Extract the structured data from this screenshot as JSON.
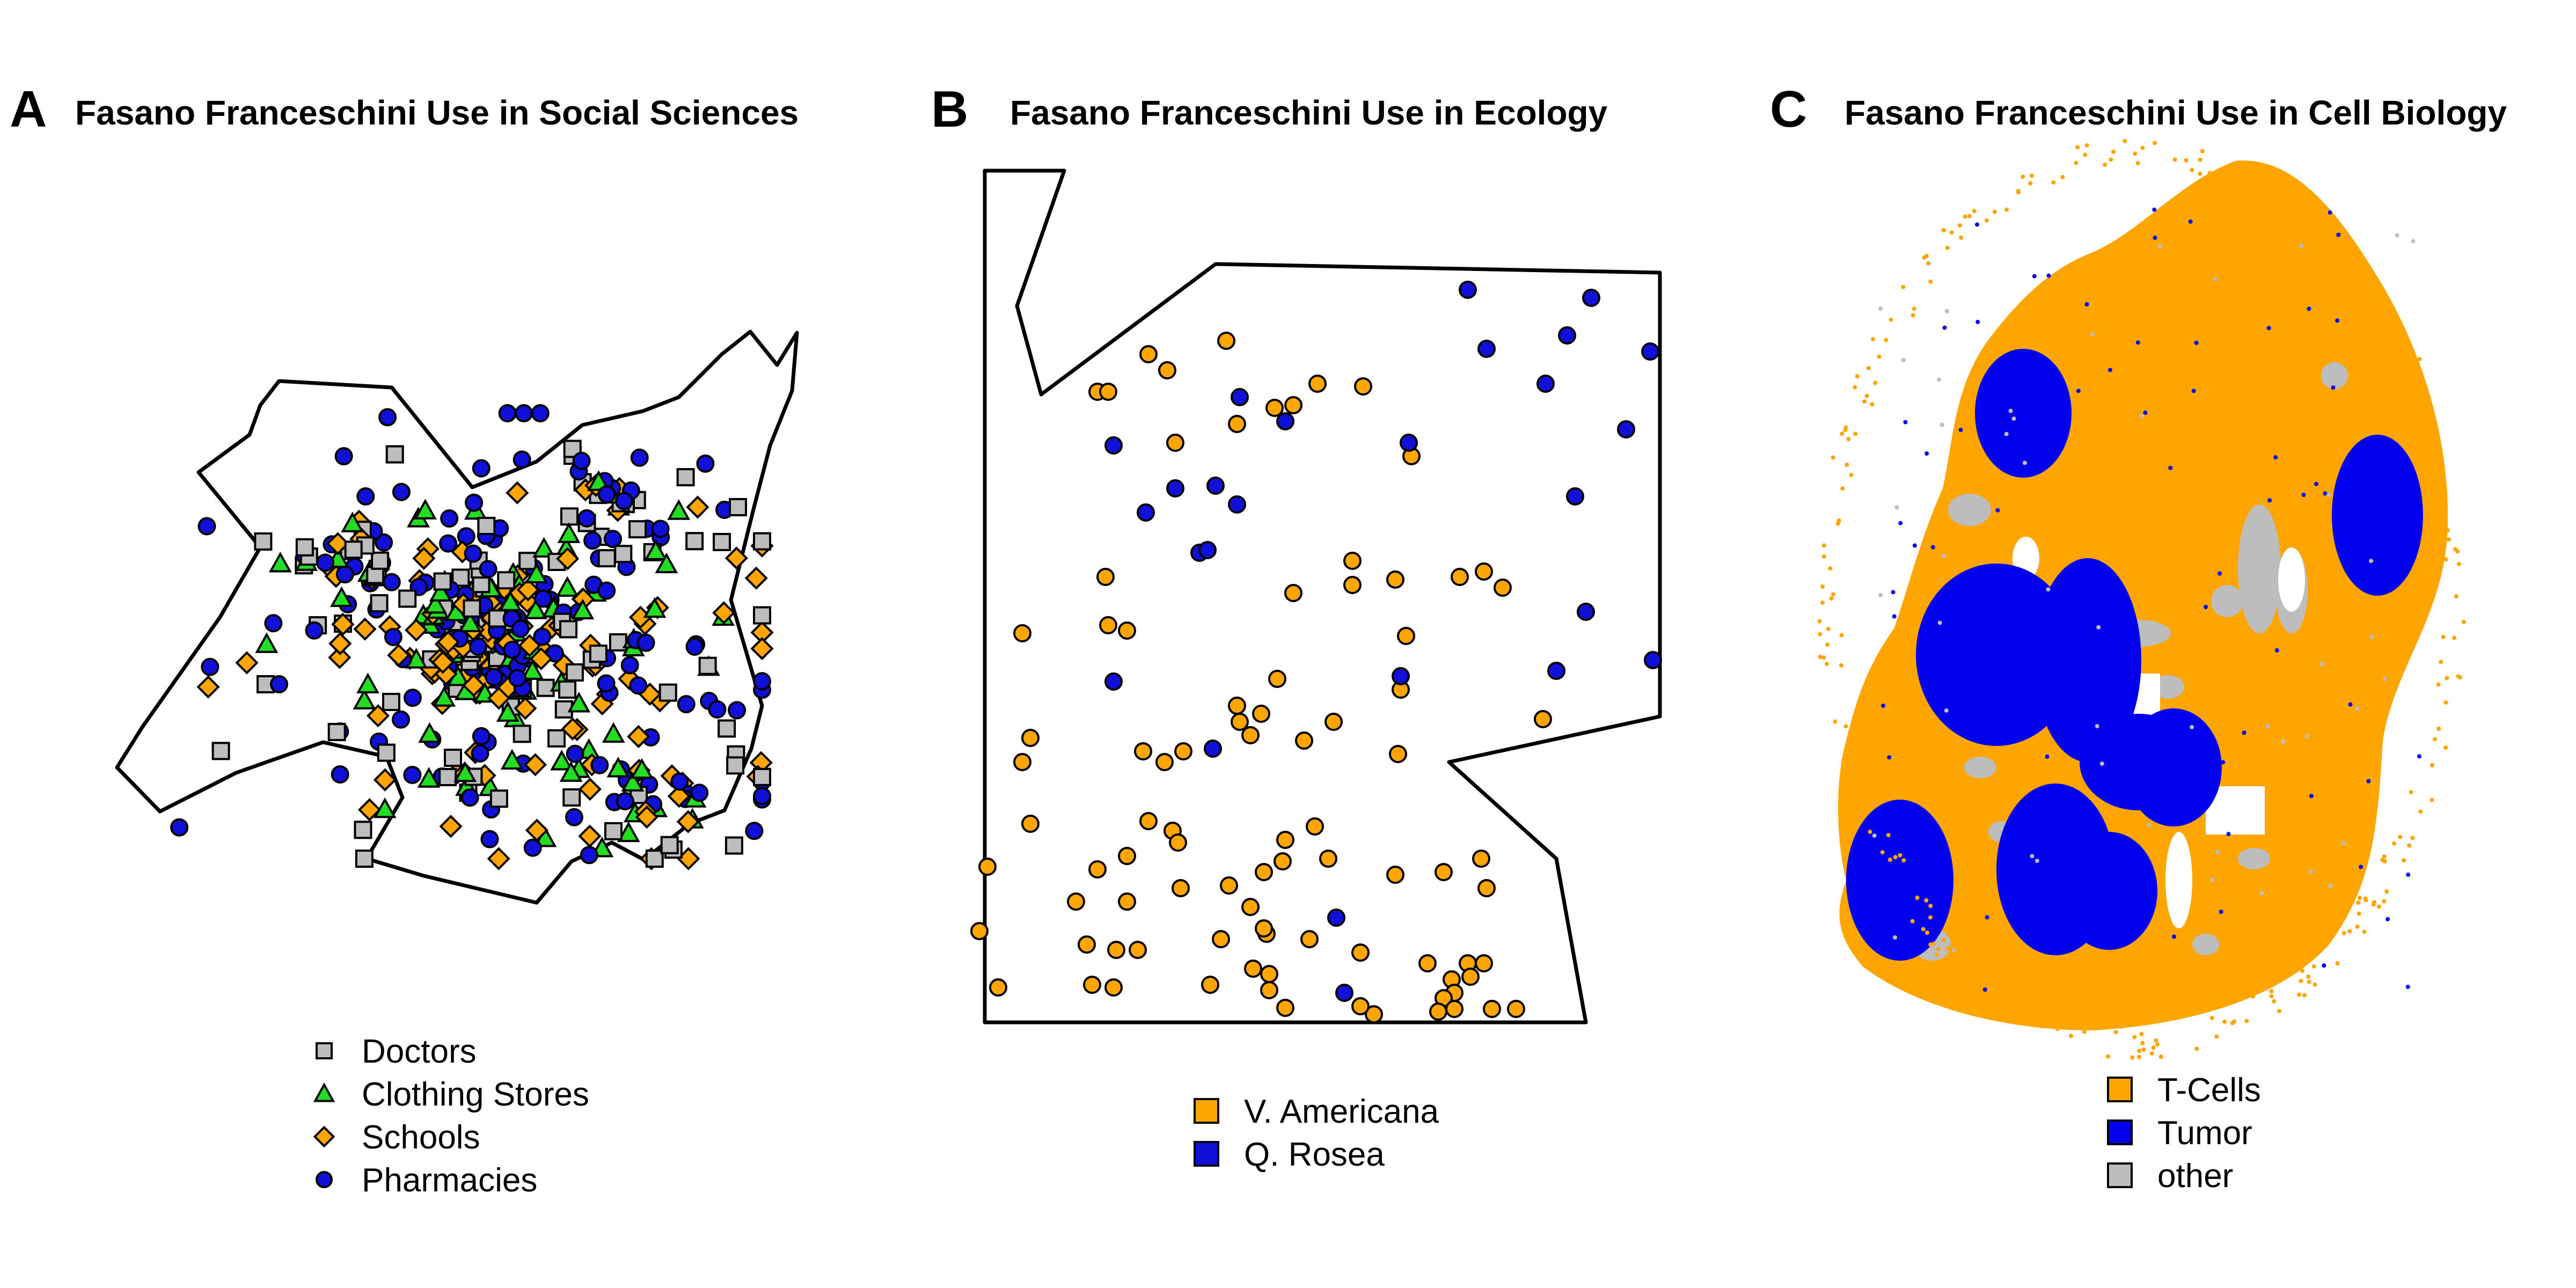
{
  "colors": {
    "doctors": "#bdbdbd",
    "clothing": "#22dd22",
    "schools": "#ffa500",
    "pharmacies": "#1010d8",
    "tcells": "#ffa500",
    "tumor": "#0000ee",
    "other": "#bdbdbd",
    "outline": "#000000"
  },
  "chart_data": [
    {
      "type": "scatter",
      "panel": "A",
      "title": "Fasano Franceschini Use in Social Sciences",
      "xlabel": "",
      "ylabel": "",
      "legend_position": "bottom",
      "series": [
        {
          "name": "Doctors",
          "marker": "square",
          "color": "#bdbdbd"
        },
        {
          "name": "Clothing Stores",
          "marker": "triangle",
          "color": "#22dd22"
        },
        {
          "name": "Schools",
          "marker": "diamond",
          "color": "#ffa500"
        },
        {
          "name": "Pharmacies",
          "marker": "circle",
          "color": "#1010d8"
        }
      ]
    },
    {
      "type": "scatter",
      "panel": "B",
      "title": "Fasano Franceschini Use in Ecology",
      "xlabel": "",
      "ylabel": "",
      "legend_position": "bottom",
      "series": [
        {
          "name": "V. Americana",
          "marker": "circle",
          "color": "#ffa500"
        },
        {
          "name": "Q. Rosea",
          "marker": "circle",
          "color": "#1010d8"
        }
      ]
    },
    {
      "type": "scatter",
      "panel": "C",
      "title": "Fasano Franceschini Use in Cell Biology",
      "xlabel": "",
      "ylabel": "",
      "legend_position": "bottom",
      "series": [
        {
          "name": "T-Cells",
          "marker": "dot",
          "color": "#ffa500"
        },
        {
          "name": "Tumor",
          "marker": "dot",
          "color": "#0000ee"
        },
        {
          "name": "other",
          "marker": "dot",
          "color": "#bdbdbd"
        }
      ]
    }
  ]
}
